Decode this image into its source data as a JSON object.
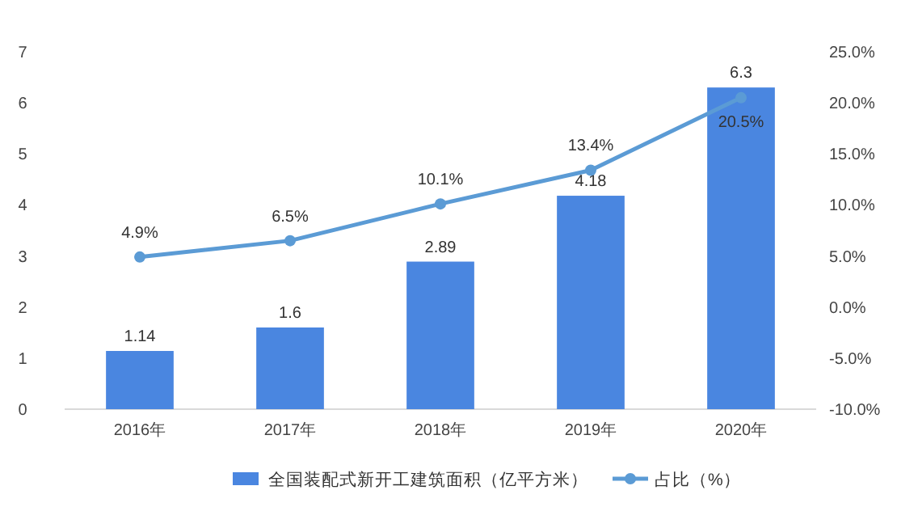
{
  "chart_data": {
    "type": "bar",
    "categories": [
      "2016年",
      "2017年",
      "2018年",
      "2019年",
      "2020年"
    ],
    "series": [
      {
        "name": "全国装配式新开工建筑面积（亿平方米）",
        "color": "#4a86e0",
        "values": [
          1.14,
          1.6,
          2.89,
          4.18,
          6.3
        ],
        "value_labels": [
          "1.14",
          "1.6",
          "2.89",
          "4.18",
          "6.3"
        ]
      },
      {
        "name": "占比（%）",
        "type": "line",
        "axis": "y2",
        "color": "#5b9bd5",
        "marker": "circle",
        "values": [
          4.9,
          6.5,
          10.1,
          13.4,
          20.5
        ],
        "value_labels": [
          "4.9%",
          "6.5%",
          "10.1%",
          "13.4%",
          "20.5%"
        ]
      }
    ],
    "ylim": [
      0,
      7
    ],
    "yticks": [
      0,
      1,
      2,
      3,
      4,
      5,
      6,
      7
    ],
    "y2lim": [
      -10,
      25
    ],
    "y2ticks": [
      {
        "value": -10,
        "label": "-10.0%"
      },
      {
        "value": -5,
        "label": "-5.0%"
      },
      {
        "value": 0,
        "label": "0.0%"
      },
      {
        "value": 5,
        "label": "5.0%"
      },
      {
        "value": 10,
        "label": "10.0%"
      },
      {
        "value": 15,
        "label": "15.0%"
      },
      {
        "value": 20,
        "label": "20.0%"
      },
      {
        "value": 25,
        "label": "25.0%"
      }
    ],
    "legend": "bottom",
    "grid": false
  }
}
